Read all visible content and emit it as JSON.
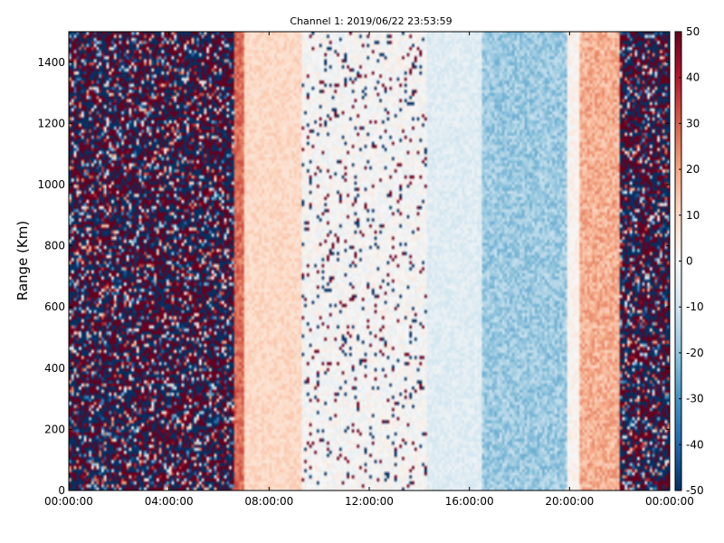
{
  "chart_data": {
    "type": "heatmap",
    "title": "Channel 1: 2019/06/22 23:53:59",
    "xlabel": "",
    "ylabel": "Range (Km)",
    "xlim": [
      "00:00:00",
      "24:00:00"
    ],
    "ylim": [
      0,
      1500
    ],
    "x_ticks": [
      "00:00:00",
      "04:00:00",
      "08:00:00",
      "12:00:00",
      "16:00:00",
      "20:00:00",
      "00:00:00"
    ],
    "x_tick_hours": [
      0,
      4,
      8,
      12,
      16,
      20,
      24
    ],
    "y_ticks": [
      0,
      200,
      400,
      600,
      800,
      1000,
      1200,
      1400
    ],
    "colorbar": {
      "min": -50,
      "max": 50,
      "ticks": [
        50,
        40,
        30,
        20,
        10,
        0,
        -10,
        -20,
        -30,
        -40,
        -50
      ],
      "colormap": "RdBu_r",
      "colors": [
        "#053061",
        "#2166ac",
        "#4393c3",
        "#92c5de",
        "#d1e5f0",
        "#f7f7f7",
        "#fddbc7",
        "#f4a582",
        "#d6604d",
        "#b2182b",
        "#67001f"
      ]
    },
    "grid": false,
    "bands": [
      {
        "start_hour": 0.0,
        "end_hour": 6.6,
        "description": "noise",
        "mean": 0,
        "spread": 50
      },
      {
        "start_hour": 6.6,
        "end_hour": 7.0,
        "description": "strong positive edge",
        "mean": 28,
        "spread": 6
      },
      {
        "start_hour": 7.0,
        "end_hour": 9.3,
        "description": "positive",
        "mean": 10,
        "spread": 4
      },
      {
        "start_hour": 9.3,
        "end_hour": 14.3,
        "description": "near zero with speckle",
        "mean": 0,
        "spread": 5
      },
      {
        "start_hour": 14.3,
        "end_hour": 16.5,
        "description": "slightly negative",
        "mean": -6,
        "spread": 4
      },
      {
        "start_hour": 16.5,
        "end_hour": 19.9,
        "description": "negative",
        "mean": -18,
        "spread": 7
      },
      {
        "start_hour": 19.9,
        "end_hour": 20.4,
        "description": "transition",
        "mean": 2,
        "spread": 4
      },
      {
        "start_hour": 20.4,
        "end_hour": 22.0,
        "description": "positive",
        "mean": 18,
        "spread": 7
      },
      {
        "start_hour": 22.0,
        "end_hour": 24.0,
        "description": "noise",
        "mean": 0,
        "spread": 50
      }
    ]
  }
}
